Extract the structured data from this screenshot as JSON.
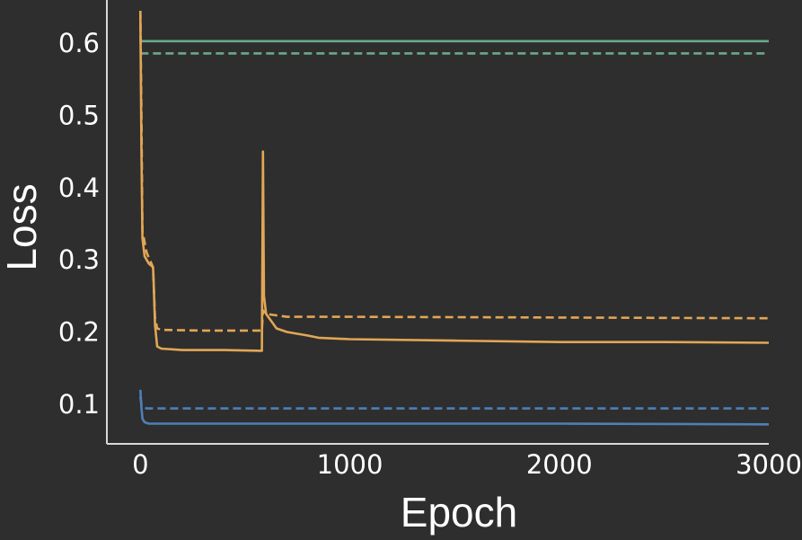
{
  "chart_data": {
    "type": "line",
    "title": "",
    "xlabel": "Epoch",
    "ylabel": "Loss",
    "xlim": [
      -160,
      3000
    ],
    "ylim": [
      0.045,
      0.66
    ],
    "xticks": [
      0,
      1000,
      2000,
      3000
    ],
    "yticks": [
      0.1,
      0.2,
      0.3,
      0.4,
      0.5,
      0.6
    ],
    "xtick_labels": [
      "0",
      "1000",
      "2000",
      "3000"
    ],
    "ytick_labels": [
      "0.1",
      "0.2",
      "0.3",
      "0.4",
      "0.5",
      "0.6"
    ],
    "grid": false,
    "legend": "none",
    "series": [
      {
        "color": "#6aaa88",
        "style": "solid",
        "points": [
          [
            0,
            0.603
          ],
          [
            3000,
            0.603
          ]
        ]
      },
      {
        "color": "#6aaa88",
        "style": "dashed",
        "points": [
          [
            0,
            0.586
          ],
          [
            3000,
            0.586
          ]
        ]
      },
      {
        "color": "#e2a655",
        "style": "solid",
        "points": [
          [
            0,
            0.64
          ],
          [
            5,
            0.45
          ],
          [
            10,
            0.33
          ],
          [
            20,
            0.305
          ],
          [
            40,
            0.295
          ],
          [
            60,
            0.29
          ],
          [
            62,
            0.28
          ],
          [
            70,
            0.21
          ],
          [
            80,
            0.18
          ],
          [
            100,
            0.177
          ],
          [
            200,
            0.175
          ],
          [
            400,
            0.175
          ],
          [
            580,
            0.174
          ],
          [
            585,
            0.45
          ],
          [
            590,
            0.25
          ],
          [
            600,
            0.225
          ],
          [
            650,
            0.205
          ],
          [
            700,
            0.2
          ],
          [
            800,
            0.195
          ],
          [
            850,
            0.192
          ],
          [
            1000,
            0.19
          ],
          [
            1500,
            0.188
          ],
          [
            2000,
            0.186
          ],
          [
            2500,
            0.186
          ],
          [
            3000,
            0.185
          ]
        ]
      },
      {
        "color": "#e2a655",
        "style": "dashed",
        "points": [
          [
            0,
            0.645
          ],
          [
            5,
            0.5
          ],
          [
            10,
            0.34
          ],
          [
            30,
            0.31
          ],
          [
            60,
            0.29
          ],
          [
            70,
            0.22
          ],
          [
            80,
            0.205
          ],
          [
            100,
            0.203
          ],
          [
            300,
            0.202
          ],
          [
            580,
            0.202
          ],
          [
            585,
            0.23
          ],
          [
            600,
            0.225
          ],
          [
            700,
            0.221
          ],
          [
            1000,
            0.221
          ],
          [
            2000,
            0.22
          ],
          [
            3000,
            0.219
          ]
        ]
      },
      {
        "color": "#4f7fb8",
        "style": "solid",
        "points": [
          [
            0,
            0.12
          ],
          [
            5,
            0.095
          ],
          [
            10,
            0.08
          ],
          [
            20,
            0.075
          ],
          [
            40,
            0.073
          ],
          [
            100,
            0.073
          ],
          [
            500,
            0.073
          ],
          [
            1000,
            0.073
          ],
          [
            2000,
            0.073
          ],
          [
            3000,
            0.072
          ]
        ]
      },
      {
        "color": "#4f7fb8",
        "style": "dashed",
        "points": [
          [
            0,
            0.11
          ],
          [
            5,
            0.1
          ],
          [
            15,
            0.096
          ],
          [
            30,
            0.094
          ],
          [
            60,
            0.094
          ],
          [
            200,
            0.094
          ],
          [
            1000,
            0.094
          ],
          [
            2000,
            0.094
          ],
          [
            3000,
            0.094
          ]
        ]
      }
    ]
  },
  "colors": {
    "background": "#2e2e2e",
    "axis": "#d8d8d8",
    "text": "#ffffff"
  }
}
